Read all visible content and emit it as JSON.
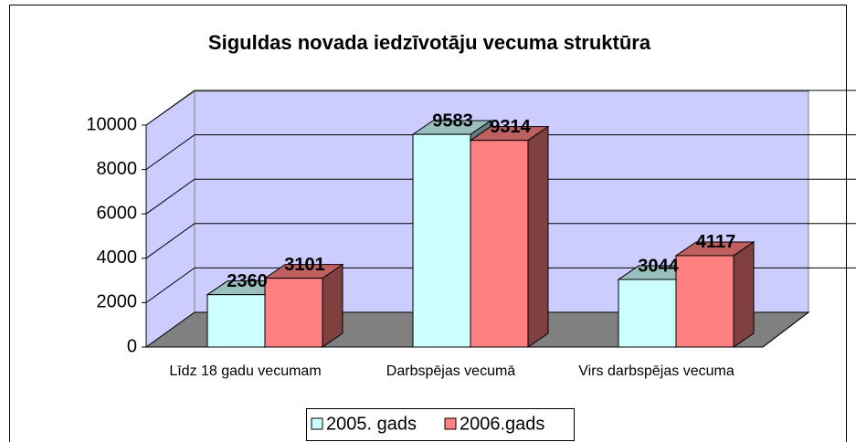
{
  "chart_data": {
    "type": "bar",
    "title": "Siguldas novada iedzīvotāju vecuma struktūra",
    "categories": [
      "Līdz 18 gadu vecumam",
      "Darbspējas vecumā",
      "Virs darbspējas vecuma"
    ],
    "series": [
      {
        "name": "2005. gads",
        "color": "#ccffff",
        "values": [
          2360,
          9583,
          3044
        ]
      },
      {
        "name": "2006.gads",
        "color": "#ff8080",
        "values": [
          3101,
          9314,
          4117
        ]
      }
    ],
    "ylim": [
      0,
      10000
    ],
    "yticks": [
      0,
      2000,
      4000,
      6000,
      8000,
      10000
    ],
    "grid": true,
    "legend": "bottom"
  }
}
